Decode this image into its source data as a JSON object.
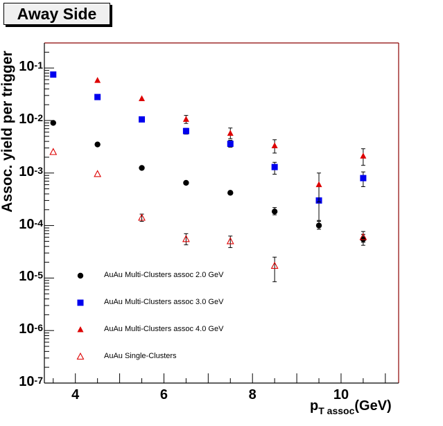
{
  "title": "Away Side",
  "chart_data": {
    "type": "scatter",
    "title": "Away Side",
    "xlabel": "p_T assoc (GeV)",
    "xlabel_main": "p",
    "xlabel_sub": "T assoc",
    "xlabel_unit": "(GeV)",
    "ylabel": "Assoc. yield per trigger",
    "xlim": [
      3.3,
      11.3
    ],
    "ylim": [
      1e-07,
      0.3
    ],
    "ylog": true,
    "xticks": [
      "4",
      "6",
      "8",
      "10"
    ],
    "yticks": [
      {
        "base": "10",
        "exp": "-7"
      },
      {
        "base": "10",
        "exp": "-6"
      },
      {
        "base": "10",
        "exp": "-5"
      },
      {
        "base": "10",
        "exp": "-4"
      },
      {
        "base": "10",
        "exp": "-3"
      },
      {
        "base": "10",
        "exp": "-2"
      },
      {
        "base": "10",
        "exp": "-1"
      }
    ],
    "legend_position": "bottom-left",
    "series": [
      {
        "name": "AuAu Multi-Clusters assoc 2.0 GeV",
        "marker": "circle",
        "color": "#000000",
        "points": [
          {
            "x": 3.5,
            "y": 0.009
          },
          {
            "x": 4.5,
            "y": 0.0035
          },
          {
            "x": 5.5,
            "y": 0.00125
          },
          {
            "x": 6.5,
            "y": 0.00065
          },
          {
            "x": 7.5,
            "y": 0.00042
          },
          {
            "x": 8.5,
            "y": 0.000185,
            "lo": 0.00016,
            "hi": 0.00022
          },
          {
            "x": 9.5,
            "y": 0.0001,
            "lo": 8.5e-05,
            "hi": 0.000125
          },
          {
            "x": 10.5,
            "y": 5.5e-05,
            "lo": 4.2e-05,
            "hi": 6.8e-05
          }
        ]
      },
      {
        "name": "AuAu Multi-Clusters assoc 3.0 GeV",
        "marker": "square",
        "color": "#0000ee",
        "points": [
          {
            "x": 3.5,
            "y": 0.075
          },
          {
            "x": 4.5,
            "y": 0.028
          },
          {
            "x": 5.5,
            "y": 0.0105
          },
          {
            "x": 6.5,
            "y": 0.0063,
            "lo": 0.0055,
            "hi": 0.0071
          },
          {
            "x": 7.5,
            "y": 0.0036,
            "lo": 0.0031,
            "hi": 0.0042
          },
          {
            "x": 8.5,
            "y": 0.0013,
            "lo": 0.00095,
            "hi": 0.0016
          },
          {
            "x": 9.5,
            "y": 0.0003,
            "lo": 0.00012,
            "hi": 0.00055
          },
          {
            "x": 10.5,
            "y": 0.0008,
            "lo": 0.00055,
            "hi": 0.00105
          }
        ]
      },
      {
        "name": "AuAu Multi-Clusters assoc 4.0 GeV",
        "marker": "triangle",
        "color": "#dd0000",
        "points": [
          {
            "x": 4.5,
            "y": 0.058
          },
          {
            "x": 5.5,
            "y": 0.026
          },
          {
            "x": 6.5,
            "y": 0.0105,
            "lo": 0.0088,
            "hi": 0.0125
          },
          {
            "x": 7.5,
            "y": 0.0057,
            "lo": 0.0045,
            "hi": 0.0072
          },
          {
            "x": 8.5,
            "y": 0.0033,
            "lo": 0.0024,
            "hi": 0.0043
          },
          {
            "x": 9.5,
            "y": 0.0006,
            "lo": 0.00028,
            "hi": 0.001
          },
          {
            "x": 10.5,
            "y": 0.0021,
            "lo": 0.0014,
            "hi": 0.0029
          }
        ]
      },
      {
        "name": "AuAu Single-Clusters",
        "marker": "open-triangle",
        "color": "#dd0000",
        "points": [
          {
            "x": 3.5,
            "y": 0.0025
          },
          {
            "x": 4.5,
            "y": 0.00095
          },
          {
            "x": 5.5,
            "y": 0.00014,
            "lo": 0.00012,
            "hi": 0.000165
          },
          {
            "x": 6.5,
            "y": 5.5e-05,
            "lo": 4.3e-05,
            "hi": 7e-05
          },
          {
            "x": 7.5,
            "y": 5e-05,
            "lo": 3.8e-05,
            "hi": 6.3e-05
          },
          {
            "x": 8.5,
            "y": 1.7e-05,
            "lo": 8.5e-06,
            "hi": 2.5e-05
          },
          {
            "x": 10.5,
            "y": 6e-05,
            "lo": 4.8e-05,
            "hi": 7.7e-05
          }
        ]
      }
    ]
  }
}
